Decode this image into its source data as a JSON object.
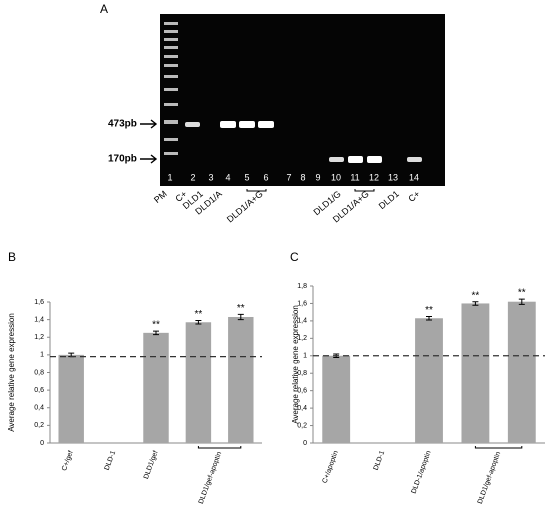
{
  "gel": {
    "panel_label": "A",
    "markers": [
      "473pb",
      "170pb"
    ],
    "lane_numbers": [
      "1",
      "2",
      "3",
      "4",
      "5",
      "6",
      "7",
      "8",
      "9",
      "10",
      "11",
      "12",
      "13",
      "14"
    ],
    "lane_labels": [
      "PM",
      "C+",
      "DLD1",
      "DLD1/A",
      "DLD1/A+G",
      "DLD1/G",
      "DLD1/A+G",
      "DLD1",
      "C+"
    ]
  },
  "chart_data": [
    {
      "type": "bar",
      "panel_label": "B",
      "y_label": "Average relative gene expression",
      "categories": [
        "C+/gef",
        "DLD-1",
        "DLD1/gef",
        null,
        null
      ],
      "group_label": "DLD1/gef-apoptin",
      "values": [
        1.0,
        null,
        1.25,
        1.37,
        1.43
      ],
      "errors": [
        0.02,
        null,
        0.02,
        0.02,
        0.03
      ],
      "significance": [
        null,
        null,
        "**",
        "**",
        "**"
      ],
      "color": "#a6a6a6",
      "reference_line": 0.98,
      "ylim": [
        0,
        1.6
      ],
      "yticks": [
        0,
        {
          "value": 0.2,
          "label": "0,2"
        },
        {
          "value": 0.4,
          "label": "0,4"
        },
        {
          "value": 0.6,
          "label": "0,6"
        },
        {
          "value": 0.8,
          "label": "0,8"
        },
        1,
        {
          "value": 1.2,
          "label": "1,2"
        },
        {
          "value": 1.4,
          "label": "1,4"
        },
        {
          "value": 1.6,
          "label": "1,6"
        }
      ]
    },
    {
      "type": "bar",
      "panel_label": "C",
      "y_label": "Average relative gene expression",
      "categories": [
        "C+/apoptin",
        "DLD-1",
        "DLD-1/apoptin",
        null,
        null
      ],
      "group_label": "DLD1/gef-apoptin",
      "values": [
        1.0,
        null,
        1.43,
        1.6,
        1.62
      ],
      "errors": [
        0.02,
        null,
        0.02,
        0.02,
        0.03
      ],
      "significance": [
        null,
        null,
        "**",
        "**",
        "**"
      ],
      "color": "#a6a6a6",
      "reference_line": 1,
      "ylim": [
        0,
        1.8
      ],
      "yticks": [
        0,
        {
          "value": 0.2,
          "label": "0,2"
        },
        {
          "value": 0.4,
          "label": "0,4"
        },
        {
          "value": 0.6,
          "label": "0,6"
        },
        {
          "value": 0.8,
          "label": "0,8"
        },
        1,
        {
          "value": 1.2,
          "label": "1,2"
        },
        {
          "value": 1.4,
          "label": "1,4"
        },
        {
          "value": 1.6,
          "label": "1,6"
        },
        {
          "value": 1.8,
          "label": "1,8"
        }
      ]
    }
  ]
}
